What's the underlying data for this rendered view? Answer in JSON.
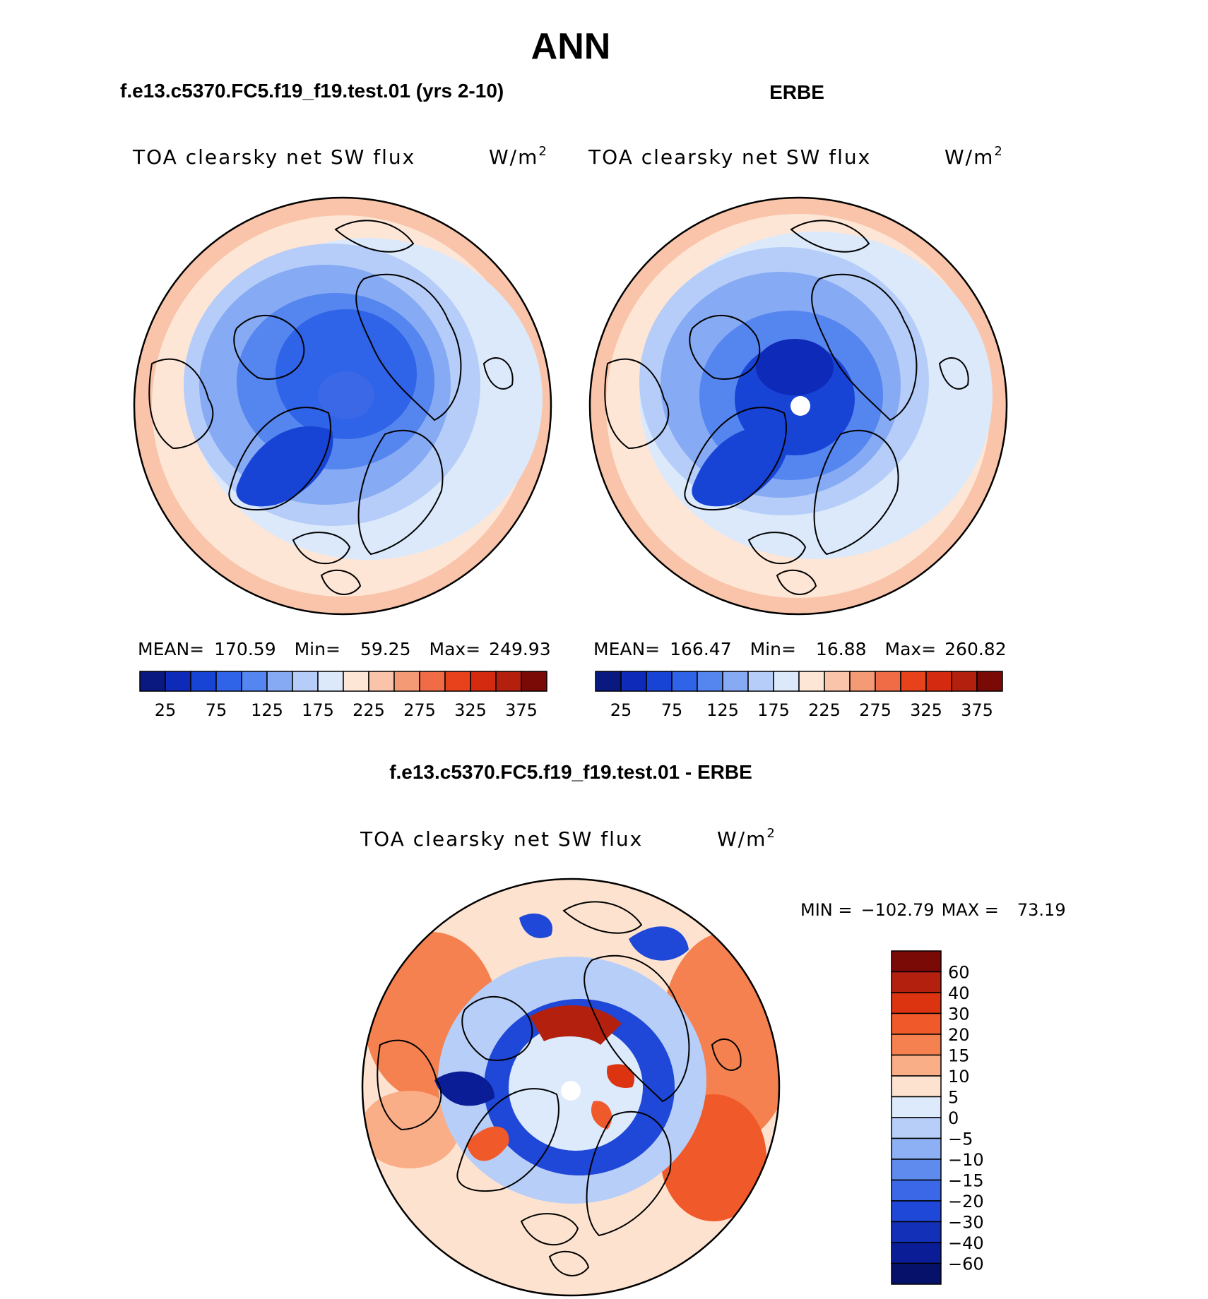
{
  "main_title": "ANN",
  "panel_a": {
    "case_title": "f.e13.c5370.FC5.f19_f19.test.01 (yrs 2-10)",
    "var_label": "TOA clearsky net SW flux",
    "units_base": "W/m",
    "units_exp": "2",
    "stats": {
      "mean_label": "MEAN=",
      "mean": "170.59",
      "min_label": "Min=",
      "min": "59.25",
      "max_label": "Max=",
      "max": "249.93"
    }
  },
  "panel_b": {
    "case_title": "ERBE",
    "var_label": "TOA clearsky net SW flux",
    "units_base": "W/m",
    "units_exp": "2",
    "stats": {
      "mean_label": "MEAN=",
      "mean": "166.47",
      "min_label": "Min=",
      "min": "16.88",
      "max_label": "Max=",
      "max": "260.82"
    }
  },
  "panel_c": {
    "case_title": "f.e13.c5370.FC5.f19_f19.test.01 - ERBE",
    "var_label": "TOA clearsky net SW flux",
    "units_base": "W/m",
    "units_exp": "2",
    "min_label": "MIN =",
    "min": "−102.79",
    "max_label": "MAX =",
    "max": "73.19"
  },
  "chart_data": [
    {
      "type": "heatmap",
      "projection": "north-polar-stereographic",
      "title": "f.e13.c5370.FC5.f19_f19.test.01 (yrs 2-10)",
      "variable": "TOA clearsky net SW flux",
      "units": "W/m2",
      "mean": 170.59,
      "min": 59.25,
      "max": 249.93,
      "levels": [
        25,
        50,
        75,
        100,
        125,
        150,
        175,
        200,
        225,
        250,
        275,
        300,
        325,
        350,
        375
      ],
      "colorbar_labels": [
        "25",
        "75",
        "125",
        "175",
        "225",
        "275",
        "325",
        "375"
      ],
      "colors": [
        "#0a1980",
        "#0d2ab8",
        "#1844d6",
        "#2f63e8",
        "#5585ee",
        "#86aaf3",
        "#b5cdf8",
        "#dbe9fb",
        "#fde6d6",
        "#f9c4a9",
        "#f49a75",
        "#f06c47",
        "#e8421d",
        "#d42a10",
        "#b4200e",
        "#7a0a06"
      ]
    },
    {
      "type": "heatmap",
      "projection": "north-polar-stereographic",
      "title": "ERBE",
      "variable": "TOA clearsky net SW flux",
      "units": "W/m2",
      "mean": 166.47,
      "min": 16.88,
      "max": 260.82,
      "levels": [
        25,
        50,
        75,
        100,
        125,
        150,
        175,
        200,
        225,
        250,
        275,
        300,
        325,
        350,
        375
      ],
      "colorbar_labels": [
        "25",
        "75",
        "125",
        "175",
        "225",
        "275",
        "325",
        "375"
      ],
      "colors": [
        "#0a1980",
        "#0d2ab8",
        "#1844d6",
        "#2f63e8",
        "#5585ee",
        "#86aaf3",
        "#b5cdf8",
        "#dbe9fb",
        "#fde6d6",
        "#f9c4a9",
        "#f49a75",
        "#f06c47",
        "#e8421d",
        "#d42a10",
        "#b4200e",
        "#7a0a06"
      ]
    },
    {
      "type": "heatmap",
      "projection": "north-polar-stereographic",
      "title": "f.e13.c5370.FC5.f19_f19.test.01 - ERBE",
      "variable": "TOA clearsky net SW flux",
      "units": "W/m2",
      "min": -102.79,
      "max": 73.19,
      "levels": [
        60,
        40,
        30,
        20,
        15,
        10,
        5,
        0,
        -5,
        -10,
        -15,
        -20,
        -30,
        -40,
        -60
      ],
      "colorbar_labels": [
        "60",
        "40",
        "30",
        "20",
        "15",
        "10",
        "5",
        "0",
        "−5",
        "−10",
        "−15",
        "−20",
        "−30",
        "−40",
        "−60"
      ],
      "colors": [
        "#7a0a06",
        "#b4200e",
        "#dc3410",
        "#f05a2a",
        "#f4814f",
        "#f9ae88",
        "#fde3cf",
        "#dceafc",
        "#b7cef8",
        "#8cb0f3",
        "#5f8bee",
        "#3a68e6",
        "#1f47d8",
        "#1230b8",
        "#0a1d96",
        "#06126a"
      ]
    }
  ]
}
